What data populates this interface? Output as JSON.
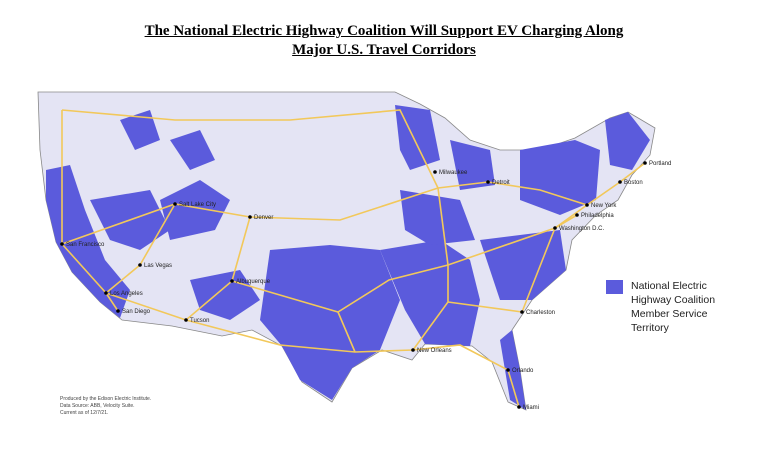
{
  "title_line1": "The National Electric Highway Coalition Will Support EV Charging Along",
  "title_line2": "Major U.S. Travel Corridors",
  "legend": {
    "label": "National Electric Highway Coalition Member Service Territory",
    "color": "#5b5bdc"
  },
  "colors": {
    "land": "#e4e4f4",
    "territory": "#5b5bdc",
    "highway": "#f2c85a",
    "border": "#888888"
  },
  "credits": [
    "Produced by the Edison Electric Institute.",
    "Data Source: ABB, Velocity Suite.",
    "Current as of 12/7/21."
  ],
  "cities": [
    "Portland",
    "Boston",
    "New York",
    "Philadelphia",
    "Washington D.C.",
    "Detroit",
    "Milwaukee",
    "Salt Lake City",
    "Denver",
    "Las Vegas",
    "Albuquerque",
    "Tucson",
    "San Francisco",
    "Los Angeles",
    "San Diego",
    "New Orleans",
    "Charleston",
    "Orlando",
    "Miami"
  ]
}
